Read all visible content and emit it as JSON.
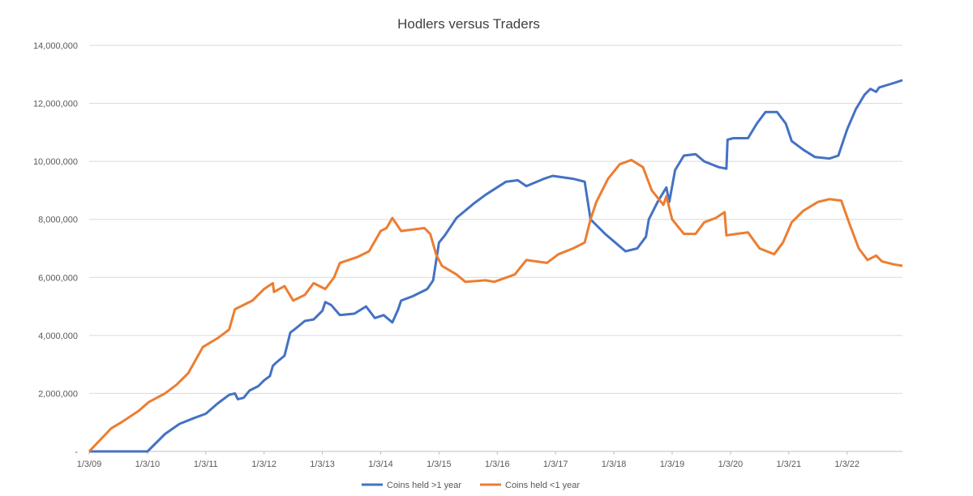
{
  "chart_data": {
    "type": "line",
    "title": "Hodlers versus Traders",
    "xlabel": "",
    "ylabel": "",
    "ylim": [
      0,
      14000000
    ],
    "xlim": [
      2009.0,
      2022.95
    ],
    "grid": true,
    "legend_position": "bottom",
    "y_ticks": [
      {
        "value": 0,
        "label": "-"
      },
      {
        "value": 2000000,
        "label": "2,000,000"
      },
      {
        "value": 4000000,
        "label": "4,000,000"
      },
      {
        "value": 6000000,
        "label": "6,000,000"
      },
      {
        "value": 8000000,
        "label": "8,000,000"
      },
      {
        "value": 10000000,
        "label": "10,000,000"
      },
      {
        "value": 12000000,
        "label": "12,000,000"
      },
      {
        "value": 14000000,
        "label": "14,000,000"
      }
    ],
    "x_ticks": [
      {
        "value": 2009,
        "label": "1/3/09"
      },
      {
        "value": 2010,
        "label": "1/3/10"
      },
      {
        "value": 2011,
        "label": "1/3/11"
      },
      {
        "value": 2012,
        "label": "1/3/12"
      },
      {
        "value": 2013,
        "label": "1/3/13"
      },
      {
        "value": 2014,
        "label": "1/3/14"
      },
      {
        "value": 2015,
        "label": "1/3/15"
      },
      {
        "value": 2016,
        "label": "1/3/16"
      },
      {
        "value": 2017,
        "label": "1/3/17"
      },
      {
        "value": 2018,
        "label": "1/3/18"
      },
      {
        "value": 2019,
        "label": "1/3/19"
      },
      {
        "value": 2020,
        "label": "1/3/20"
      },
      {
        "value": 2021,
        "label": "1/3/21"
      },
      {
        "value": 2022,
        "label": "1/3/22"
      }
    ],
    "series": [
      {
        "name": "Coins held >1 year",
        "color": "#4472C4",
        "x": [
          2009.0,
          2010.0,
          2010.3,
          2010.55,
          2010.8,
          2011.0,
          2011.2,
          2011.4,
          2011.5,
          2011.55,
          2011.65,
          2011.75,
          2011.9,
          2012.0,
          2012.1,
          2012.15,
          2012.2,
          2012.35,
          2012.45,
          2012.55,
          2012.7,
          2012.85,
          2013.0,
          2013.05,
          2013.15,
          2013.3,
          2013.55,
          2013.75,
          2013.9,
          2014.05,
          2014.2,
          2014.3,
          2014.35,
          2014.55,
          2014.8,
          2014.9,
          2015.0,
          2015.1,
          2015.3,
          2015.6,
          2015.8,
          2016.15,
          2016.35,
          2016.5,
          2016.8,
          2016.95,
          2017.3,
          2017.5,
          2017.6,
          2017.85,
          2018.2,
          2018.4,
          2018.55,
          2018.6,
          2018.75,
          2018.9,
          2018.95,
          2019.05,
          2019.2,
          2019.4,
          2019.55,
          2019.8,
          2019.93,
          2019.95,
          2020.05,
          2020.3,
          2020.45,
          2020.6,
          2020.8,
          2020.95,
          2021.05,
          2021.25,
          2021.45,
          2021.7,
          2021.85,
          2022.0,
          2022.15,
          2022.3,
          2022.4,
          2022.5,
          2022.55,
          2022.8,
          2022.95
        ],
        "values": [
          0,
          0,
          600000,
          950000,
          1150000,
          1300000,
          1650000,
          1950000,
          2000000,
          1800000,
          1850000,
          2100000,
          2250000,
          2450000,
          2600000,
          2950000,
          3050000,
          3300000,
          4100000,
          4250000,
          4500000,
          4550000,
          4850000,
          5150000,
          5050000,
          4700000,
          4750000,
          5000000,
          4600000,
          4700000,
          4450000,
          4900000,
          5200000,
          5350000,
          5600000,
          5900000,
          7200000,
          7450000,
          8050000,
          8550000,
          8850000,
          9300000,
          9350000,
          9150000,
          9400000,
          9500000,
          9400000,
          9300000,
          8000000,
          7500000,
          6900000,
          7000000,
          7400000,
          8000000,
          8600000,
          9100000,
          8600000,
          9700000,
          10200000,
          10250000,
          10000000,
          9800000,
          9750000,
          10750000,
          10800000,
          10800000,
          11300000,
          11700000,
          11700000,
          11300000,
          10700000,
          10400000,
          10150000,
          10100000,
          10200000,
          11100000,
          11800000,
          12300000,
          12500000,
          12400000,
          12550000,
          12700000,
          12800000
        ]
      },
      {
        "name": "Coins held <1 year",
        "color": "#ED7D31",
        "x": [
          2009.0,
          2009.38,
          2009.55,
          2009.85,
          2010.02,
          2010.3,
          2010.5,
          2010.7,
          2010.95,
          2011.2,
          2011.4,
          2011.5,
          2011.8,
          2012.0,
          2012.15,
          2012.17,
          2012.35,
          2012.5,
          2012.7,
          2012.85,
          2013.05,
          2013.2,
          2013.3,
          2013.6,
          2013.8,
          2014.0,
          2014.1,
          2014.2,
          2014.35,
          2014.55,
          2014.75,
          2014.85,
          2014.95,
          2015.05,
          2015.3,
          2015.45,
          2015.8,
          2015.95,
          2016.3,
          2016.5,
          2016.85,
          2017.05,
          2017.3,
          2017.5,
          2017.6,
          2017.7,
          2017.9,
          2018.1,
          2018.3,
          2018.5,
          2018.65,
          2018.85,
          2018.9,
          2019.0,
          2019.2,
          2019.4,
          2019.55,
          2019.75,
          2019.9,
          2019.93,
          2020.1,
          2020.3,
          2020.5,
          2020.75,
          2020.9,
          2021.05,
          2021.25,
          2021.5,
          2021.7,
          2021.9,
          2022.05,
          2022.2,
          2022.35,
          2022.5,
          2022.6,
          2022.8,
          2022.95
        ],
        "values": [
          0,
          800000,
          1000000,
          1400000,
          1700000,
          2000000,
          2300000,
          2700000,
          3600000,
          3900000,
          4200000,
          4900000,
          5200000,
          5600000,
          5800000,
          5500000,
          5700000,
          5200000,
          5400000,
          5800000,
          5600000,
          6000000,
          6500000,
          6700000,
          6900000,
          7600000,
          7700000,
          8050000,
          7600000,
          7650000,
          7700000,
          7500000,
          6800000,
          6400000,
          6100000,
          5850000,
          5900000,
          5850000,
          6100000,
          6600000,
          6500000,
          6800000,
          7000000,
          7200000,
          8000000,
          8600000,
          9400000,
          9900000,
          10050000,
          9800000,
          9000000,
          8500000,
          8800000,
          8000000,
          7500000,
          7500000,
          7900000,
          8050000,
          8250000,
          7450000,
          7500000,
          7550000,
          7000000,
          6800000,
          7200000,
          7900000,
          8300000,
          8600000,
          8700000,
          8650000,
          7800000,
          7000000,
          6600000,
          6750000,
          6550000,
          6450000,
          6400000
        ]
      }
    ]
  }
}
